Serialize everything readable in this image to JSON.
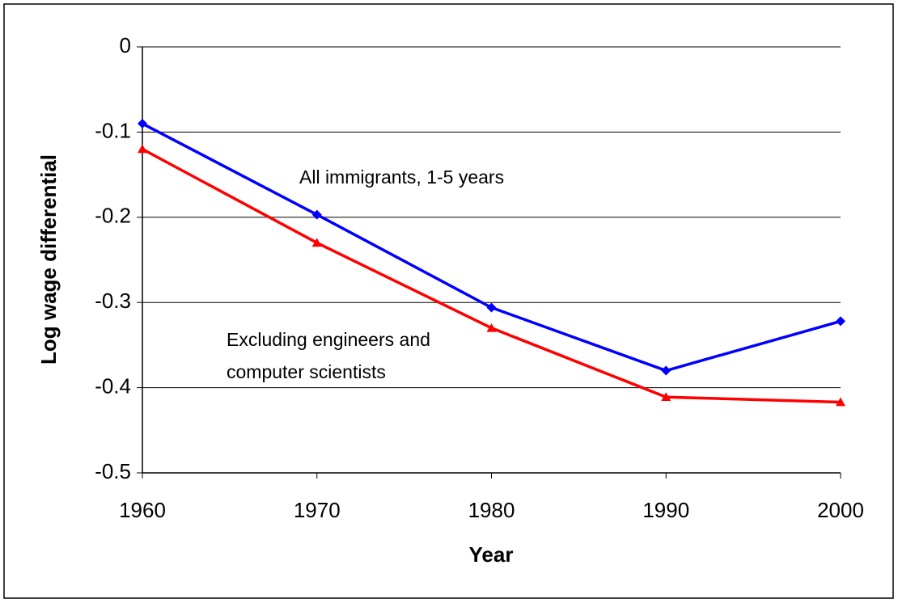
{
  "chart_data": {
    "type": "line",
    "x_label": "Year",
    "y_label": "Log wage differential",
    "x": [
      1960,
      1970,
      1980,
      1990,
      2000
    ],
    "series": [
      {
        "color": "#0000ff",
        "marker": "diamond",
        "values": [
          -0.09,
          -0.197,
          -0.306,
          -0.38,
          -0.322
        ]
      },
      {
        "color": "#ff0000",
        "marker": "triangle",
        "values": [
          -0.12,
          -0.23,
          -0.33,
          -0.411,
          -0.417
        ]
      }
    ],
    "annotations": [
      "All immigrants, 1-5 years",
      "Excluding engineers and",
      "computer scientists"
    ],
    "xlim": [
      1960,
      2000
    ],
    "xticks": [
      1960,
      1970,
      1980,
      1990,
      2000
    ],
    "ylim": [
      -0.5,
      0
    ],
    "yticks": [
      -0.5,
      -0.4,
      -0.3,
      -0.2,
      -0.1,
      0
    ],
    "grid": true
  }
}
